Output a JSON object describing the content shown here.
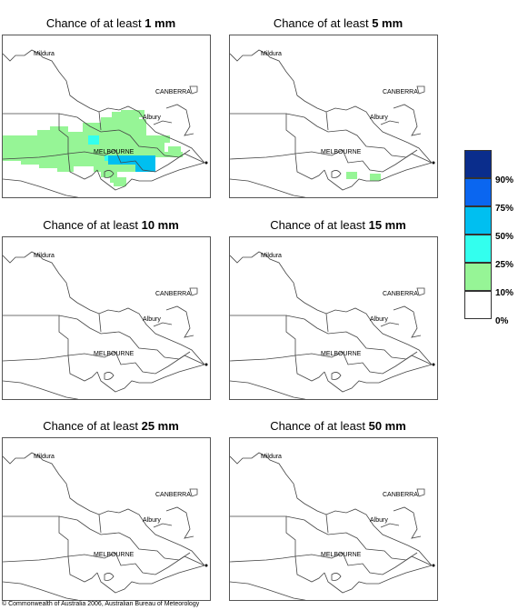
{
  "panels": [
    {
      "title_prefix": "Chance of at least ",
      "title_amount": "1 mm"
    },
    {
      "title_prefix": "Chance of at least ",
      "title_amount": "5 mm"
    },
    {
      "title_prefix": "Chance of at least ",
      "title_amount": "10 mm"
    },
    {
      "title_prefix": "Chance of at least ",
      "title_amount": "15 mm"
    },
    {
      "title_prefix": "Chance of at least ",
      "title_amount": "25 mm"
    },
    {
      "title_prefix": "Chance of at least ",
      "title_amount": "50 mm"
    }
  ],
  "places": {
    "mildura": "Mildura",
    "canberra": "CANBERRA",
    "albury": "Albury",
    "melbourne": "MELBOURNE"
  },
  "legend": {
    "labels": [
      "90%",
      "75%",
      "50%",
      "25%",
      "10%",
      "0%"
    ],
    "colors": [
      "#0a2d8c",
      "#0a66f0",
      "#00bff0",
      "#33ffee",
      "#96f596",
      "#ffffff"
    ]
  },
  "colors": {
    "green_10pct": "#96f596",
    "cyan_25pct": "#33ffee",
    "blue_50pct": "#00bff0"
  },
  "footer": "© Commonwealth of Australia 2006, Australian Bureau of Meteorology"
}
